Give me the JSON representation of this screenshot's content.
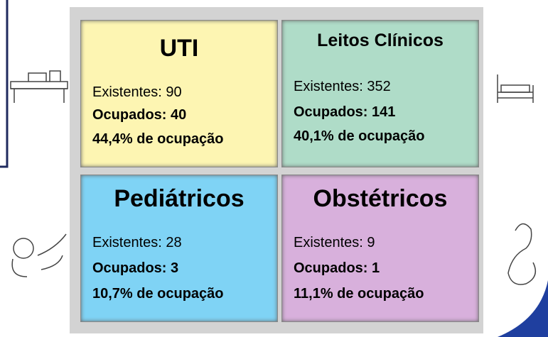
{
  "panels": [
    {
      "title": "UTI",
      "existing": "Existentes: 90",
      "occupied": "Ocupados: 40",
      "rate": "44,4% de ocupação"
    },
    {
      "title": "Leitos Clínicos",
      "existing": "Existentes: 352",
      "occupied": "Ocupados: 141",
      "rate": "40,1% de ocupação"
    },
    {
      "title": "Pediátricos",
      "existing": "Existentes: 28",
      "occupied": "Ocupados: 3",
      "rate": "10,7% de ocupação"
    },
    {
      "title": "Obstétricos",
      "existing": "Existentes: 9",
      "occupied": "Ocupados: 1",
      "rate": "11,1% de ocupação"
    }
  ]
}
